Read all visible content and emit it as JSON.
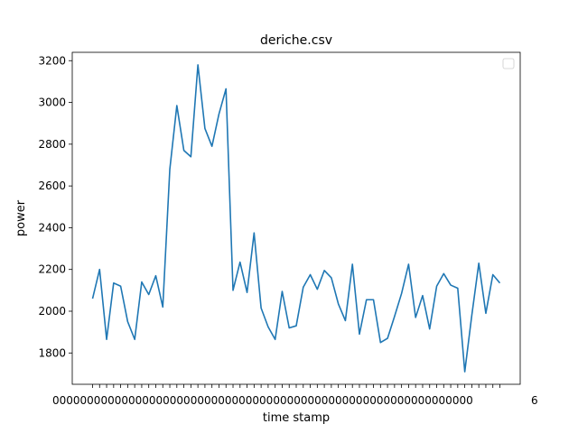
{
  "chart_data": {
    "type": "line",
    "title": "deriche.csv",
    "xlabel": "time stamp",
    "ylabel": "power",
    "ylim": [
      1650,
      3240
    ],
    "yticks": [
      1800,
      2000,
      2200,
      2400,
      2600,
      2800,
      3000,
      3200
    ],
    "grid": false,
    "legend": "top-right",
    "x_tick_text": "0000000000000000000000000000000000000000000000000000000000000",
    "x_tick_last_label": "6",
    "colors": {
      "line": "#1f77b4",
      "axes": "#000000",
      "background": "#ffffff",
      "legend_border": "#cccccc"
    },
    "series": [
      {
        "values": [
          2060,
          2200,
          1865,
          2135,
          2120,
          1950,
          1865,
          2140,
          2080,
          2170,
          2020,
          2680,
          2985,
          2770,
          2740,
          3180,
          2875,
          2790,
          2945,
          3065,
          2100,
          2235,
          2090,
          2375,
          2015,
          1925,
          1865,
          2095,
          1920,
          1930,
          2115,
          2175,
          2105,
          2195,
          2160,
          2035,
          1955,
          2225,
          1890,
          2055,
          2055,
          1850,
          1870,
          1975,
          2085,
          2225,
          1970,
          2075,
          1915,
          2120,
          2180,
          2125,
          2110,
          1710,
          1980,
          2230,
          1990,
          2175,
          2135
        ]
      }
    ]
  }
}
